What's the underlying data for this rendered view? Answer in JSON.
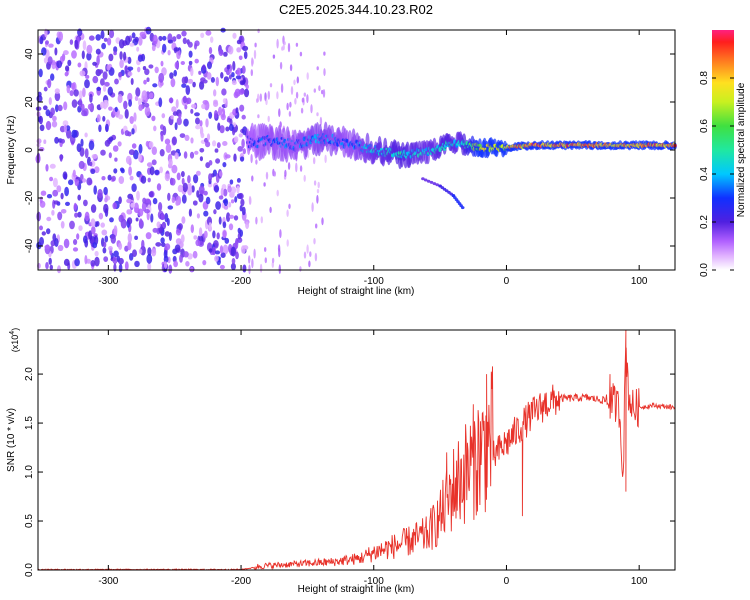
{
  "title": "C2E5.2025.344.10.23.R02",
  "colors": {
    "snr_line": "#e8322a",
    "ridge_low": "#4e1fd0",
    "ridge_mid": "#00c8ff",
    "ridge_high": "#30e060",
    "ridge_peak": "#ff2020"
  },
  "chart_data": [
    {
      "type": "heatmap",
      "xlabel": "Height of straight line (km)",
      "ylabel": "Frequency (Hz)",
      "xlim": [
        -353,
        127
      ],
      "ylim": [
        -50,
        50
      ],
      "xticks": [
        -300,
        -200,
        -100,
        0,
        100
      ],
      "yticks": [
        -40,
        -20,
        0,
        20,
        40
      ],
      "ytick_labels_rotated": true,
      "colorbar": {
        "label": "Normalized spectral amplitude",
        "range": [
          0,
          1
        ],
        "ticks": [
          0.0,
          0.2,
          0.4,
          0.6,
          0.8
        ],
        "tick_labels": [
          "0.0",
          "0.2",
          "0.4",
          "0.6",
          "0.8"
        ],
        "colormap": "rainbow (magenta-blue-cyan-green-yellow-red)"
      },
      "ridge": {
        "description": "dominant frequency ridge vs height",
        "x": [
          -195,
          -180,
          -160,
          -140,
          -120,
          -100,
          -80,
          -60,
          -45,
          -35,
          -30,
          -20,
          -10,
          -5,
          0,
          20,
          50,
          85,
          90,
          127
        ],
        "y": [
          3,
          4,
          2,
          5,
          3,
          0,
          -2,
          -1,
          2,
          3,
          2,
          1,
          1,
          1,
          1,
          2,
          2,
          2,
          2,
          2
        ],
        "amplitude": [
          0.3,
          0.35,
          0.35,
          0.4,
          0.35,
          0.45,
          0.5,
          0.45,
          0.5,
          0.45,
          0.55,
          0.8,
          0.85,
          0.8,
          0.85,
          0.95,
          0.95,
          0.9,
          0.9,
          0.95
        ]
      },
      "tail": {
        "description": "secondary descending feature",
        "x": [
          -63,
          -50,
          -40,
          -33
        ],
        "y": [
          -12,
          -15,
          -19,
          -24
        ]
      },
      "noise_region_x": [
        -353,
        -195
      ]
    },
    {
      "type": "line",
      "xlabel": "Height of straight line (km)",
      "ylabel": "SNR (10 * v/v)",
      "y_multiplier": "(x10^4)",
      "xlim": [
        -353,
        127
      ],
      "ylim": [
        0,
        2.45
      ],
      "xticks": [
        -300,
        -200,
        -100,
        0,
        100
      ],
      "yticks": [
        0.0,
        0.5,
        1.0,
        1.5,
        2.0
      ],
      "ytick_labels": [
        "0.0",
        "0.5",
        "1.0",
        "1.5",
        "2.0"
      ],
      "series": [
        {
          "values_x": [
            -353,
            -200,
            -185,
            -160,
            -130,
            -110,
            -100,
            -80,
            -60,
            -50,
            -40,
            -30,
            -20,
            -15,
            -10,
            0,
            10,
            20,
            30,
            40,
            60,
            80,
            85,
            88,
            90,
            92,
            95,
            110,
            127
          ],
          "values_y": [
            0.0,
            0.0,
            0.03,
            0.05,
            0.07,
            0.1,
            0.15,
            0.22,
            0.3,
            0.45,
            0.7,
            0.85,
            1.0,
            1.05,
            1.15,
            1.3,
            1.45,
            1.6,
            1.7,
            1.75,
            1.76,
            1.72,
            1.65,
            1.0,
            2.35,
            1.8,
            1.65,
            1.68,
            1.66
          ],
          "spikes": [
            {
              "x": -45,
              "y": 1.2
            },
            {
              "x": -15,
              "y": 2.0
            },
            {
              "x": 78,
              "y": 2.0
            },
            {
              "x": 90,
              "y": 2.45
            },
            {
              "x": 90,
              "y": 0.8
            },
            {
              "x": 12,
              "y": 0.55
            }
          ]
        }
      ]
    }
  ]
}
